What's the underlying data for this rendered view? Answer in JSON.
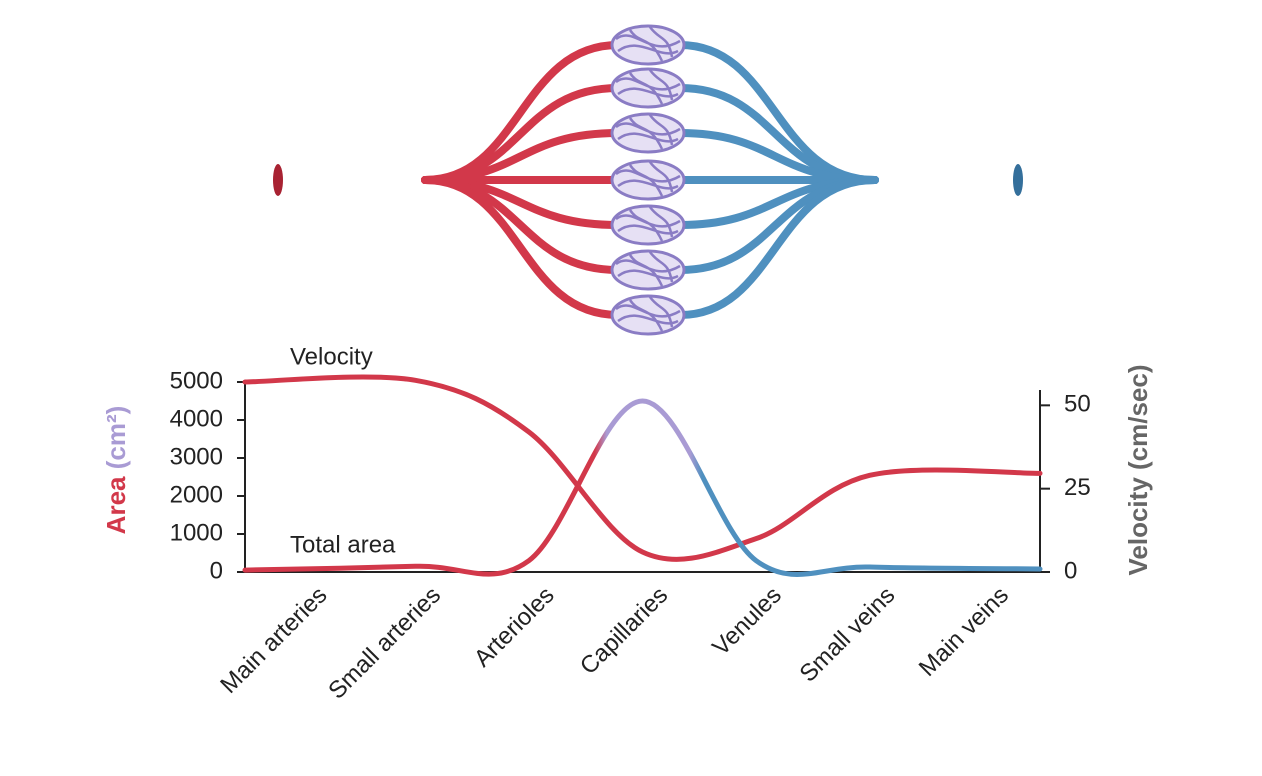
{
  "chart_data": {
    "type": "line",
    "categories": [
      "Main arteries",
      "Small arteries",
      "Arterioles",
      "Capillaries",
      "Venules",
      "Small veins",
      "Main veins"
    ],
    "series": [
      {
        "name": "Velocity",
        "color": "#d2384a",
        "axis": "y2",
        "values": [
          57,
          57.5,
          42,
          6,
          10,
          29,
          29.6
        ]
      },
      {
        "name": "Total area",
        "color": [
          "#d2384a",
          "#a99bd4",
          "#4f90bf"
        ],
        "values": [
          50,
          150,
          300,
          4500,
          300,
          130,
          80
        ]
      }
    ],
    "ylabel": [
      "Area",
      "(cm²)"
    ],
    "ylabel_colors": [
      "#d2384a",
      "#a99bd4"
    ],
    "y2label": "Velocity (cm/sec)",
    "ylim": [
      0,
      5000
    ],
    "yticks": [
      0,
      1000,
      2000,
      3000,
      4000,
      5000
    ],
    "y2lim": [
      0,
      57
    ],
    "y2ticks": [
      0,
      25,
      50
    ]
  }
}
